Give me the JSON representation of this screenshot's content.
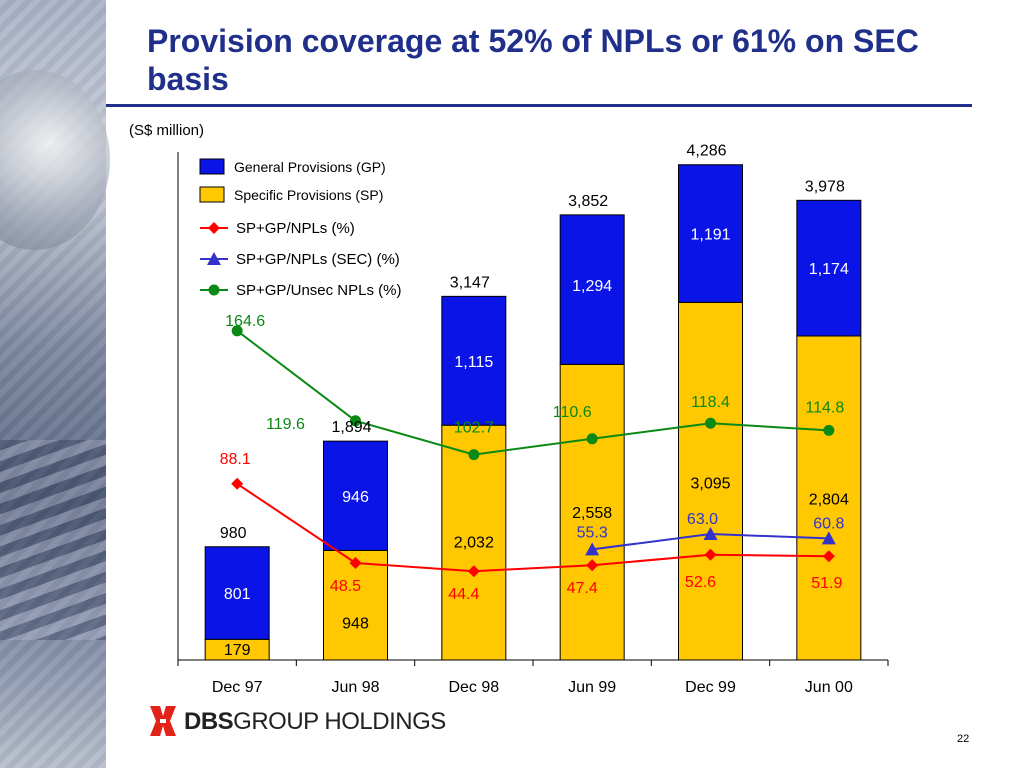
{
  "slide": {
    "title": "Provision coverage at 52% of NPLs or 61% on SEC basis",
    "unit_label": "(S$ million)",
    "page_number": "22",
    "logo": {
      "text_bold": "DBS",
      "text_rest": "GROUP HOLDINGS",
      "brand_color": "#e2231a"
    }
  },
  "chart_data": {
    "type": "bar",
    "stacked": true,
    "categories": [
      "Dec 97",
      "Jun 98",
      "Dec 98",
      "Jun 99",
      "Dec 99",
      "Jun 00"
    ],
    "bar_series": [
      {
        "name": "Specific Provisions (SP)",
        "color": "#ffc800",
        "values": [
          179,
          948,
          2032,
          2558,
          3095,
          2804
        ]
      },
      {
        "name": "General Provisions (GP)",
        "color": "#0a14e6",
        "values": [
          801,
          946,
          1115,
          1294,
          1191,
          1174
        ]
      }
    ],
    "totals": [
      980,
      1894,
      3147,
      3852,
      4286,
      3978
    ],
    "bar_label_text": {
      "sp": [
        "179",
        "948",
        "2,032",
        "2,558",
        "3,095",
        "2,804"
      ],
      "gp": [
        "801",
        "946",
        "1,115",
        "1,294",
        "1,191",
        "1,174"
      ],
      "total": [
        "980",
        "1,894",
        "3,147",
        "3,852",
        "4,286",
        "3,978"
      ]
    },
    "line_series": [
      {
        "name": "SP+GP/NPLs (%)",
        "color": "#ff0000",
        "marker": "diamond",
        "values": [
          88.1,
          48.5,
          44.4,
          47.4,
          52.6,
          51.9
        ],
        "labels": [
          "88.1",
          "48.5",
          "44.4",
          "47.4",
          "52.6",
          "51.9"
        ]
      },
      {
        "name": "SP+GP/NPLs (SEC) (%)",
        "color": "#3333cc",
        "marker": "triangle",
        "values": [
          null,
          null,
          null,
          55.3,
          63.0,
          60.8
        ],
        "labels": [
          "",
          "",
          "",
          "55.3",
          "63.0",
          "60.8"
        ]
      },
      {
        "name": "SP+GP/Unsec NPLs (%)",
        "color": "#0a8a14",
        "marker": "circle",
        "values": [
          164.6,
          119.6,
          102.7,
          110.6,
          118.4,
          114.8
        ],
        "labels": [
          "164.6",
          "119.6",
          "102.7",
          "110.6",
          "118.4",
          "114.8"
        ]
      }
    ],
    "y_range": [
      0,
      4500
    ],
    "line_y_range": [
      0,
      260
    ],
    "grid": false,
    "legend_position": "top-left",
    "legend": [
      "General Provisions (GP)",
      "Specific Provisions (SP)",
      "SP+GP/NPLs (%)",
      "SP+GP/NPLs (SEC) (%)",
      "SP+GP/Unsec NPLs (%)"
    ]
  }
}
